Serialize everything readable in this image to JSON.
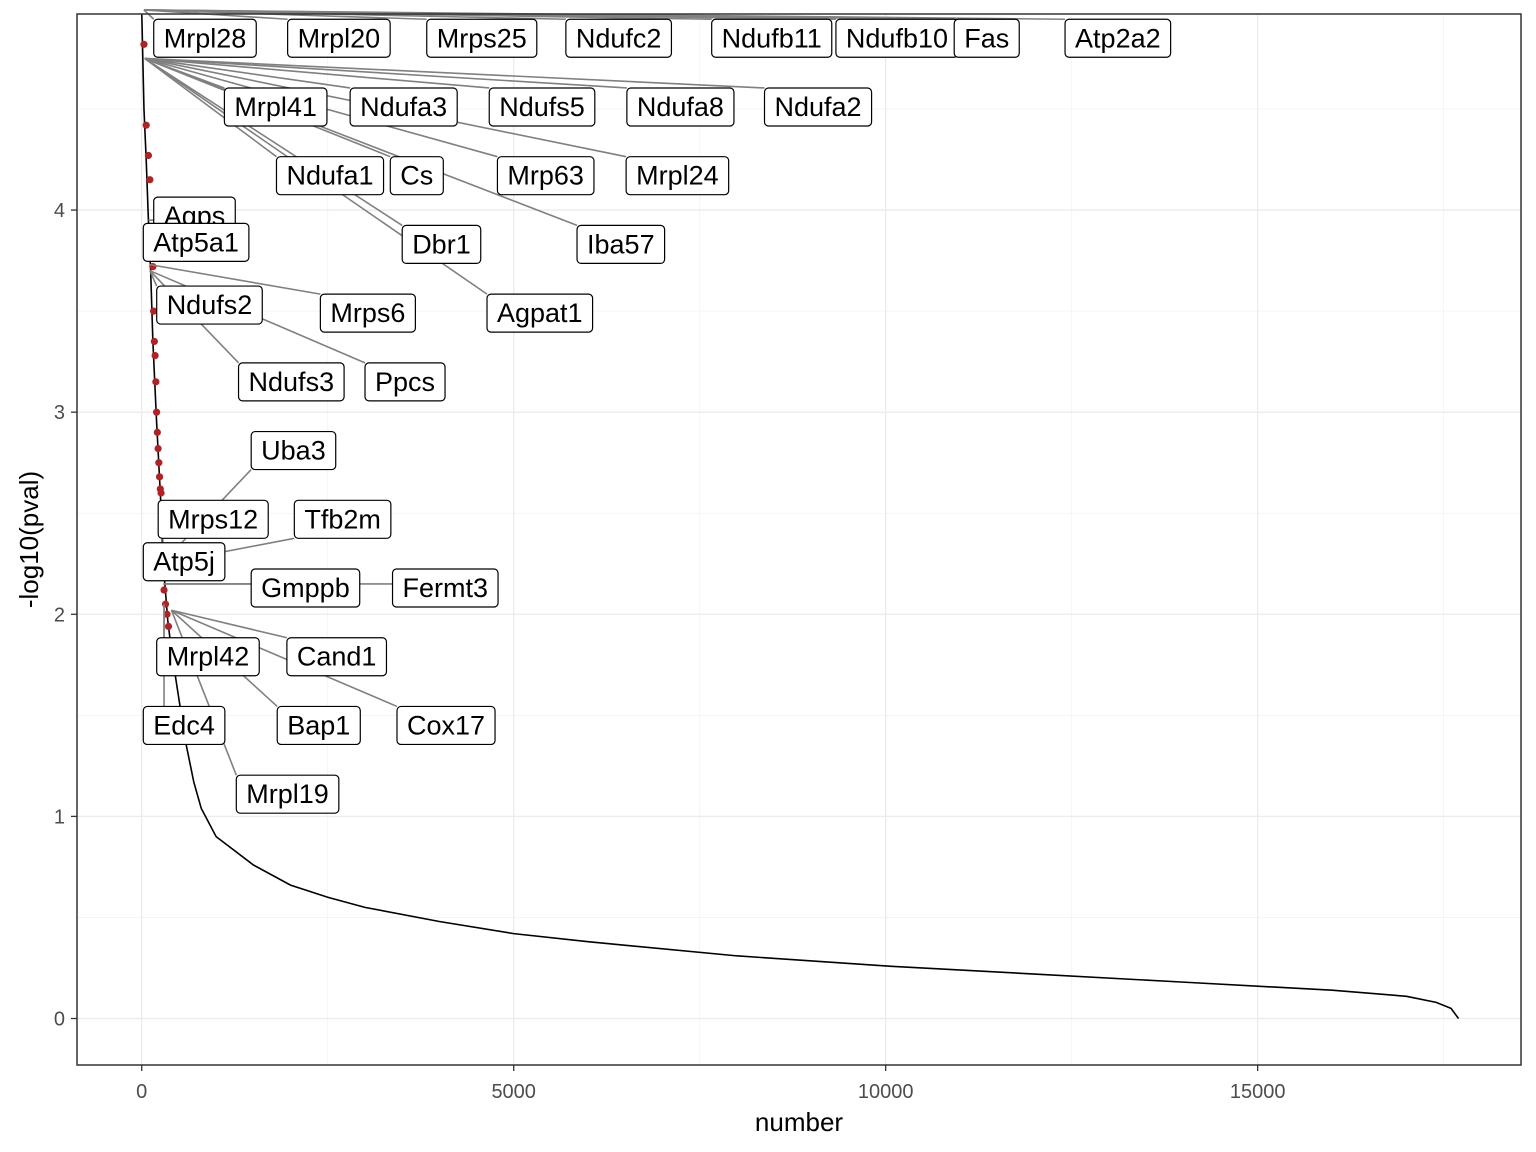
{
  "chart_data": {
    "type": "line",
    "xlabel": "number",
    "ylabel": "-log10(pval)",
    "xlim": [
      -870,
      18540
    ],
    "ylim": [
      -0.23,
      4.97
    ],
    "x_ticks": [
      0,
      5000,
      10000,
      15000
    ],
    "x_tick_labels": [
      "0",
      "5000",
      "10000",
      "15000"
    ],
    "y_ticks": [
      0,
      1,
      2,
      3,
      4
    ],
    "y_tick_labels": [
      "0",
      "1",
      "2",
      "3",
      "4"
    ],
    "grid": true,
    "colors": {
      "line": "#000000",
      "highlight_points": "#b22222",
      "connector": "#808080",
      "grid": "#ebebeb",
      "panel_border": "#333333"
    },
    "series": [
      {
        "values_description_x": "number",
        "x": [
          1,
          30,
          60,
          90,
          120,
          150,
          200,
          250,
          300,
          350,
          400,
          450,
          500,
          600,
          700,
          800,
          1000,
          1500,
          2000,
          2500,
          3000,
          4000,
          5000,
          6000,
          8000,
          10000,
          12000,
          14000,
          16000,
          17000,
          17400,
          17600,
          17700
        ],
        "y": [
          5.0,
          4.5,
          4.25,
          3.95,
          3.7,
          3.35,
          2.95,
          2.6,
          2.2,
          1.97,
          1.82,
          1.7,
          1.58,
          1.35,
          1.17,
          1.04,
          0.9,
          0.76,
          0.66,
          0.6,
          0.55,
          0.48,
          0.42,
          0.38,
          0.31,
          0.26,
          0.22,
          0.18,
          0.14,
          0.11,
          0.08,
          0.05,
          0.0
        ]
      }
    ],
    "highlight_points": {
      "x": [
        30,
        60,
        90,
        110,
        120,
        130,
        150,
        160,
        170,
        180,
        190,
        200,
        210,
        220,
        230,
        240,
        250,
        260,
        280,
        300,
        320,
        340,
        360
      ],
      "y": [
        4.82,
        4.42,
        4.27,
        4.15,
        3.9,
        3.82,
        3.72,
        3.5,
        3.35,
        3.28,
        3.15,
        3.0,
        2.9,
        2.82,
        2.75,
        2.68,
        2.62,
        2.6,
        2.25,
        2.12,
        2.05,
        2.0,
        1.94
      ]
    },
    "labels": [
      {
        "text": "Mrpl28",
        "x": 0,
        "y": 4.85,
        "tx": 30,
        "ty": 5.0
      },
      {
        "text": "Mrpl20",
        "x": 1800,
        "y": 4.85,
        "tx": 30,
        "ty": 5.0
      },
      {
        "text": "Mrps25",
        "x": 3670,
        "y": 4.85,
        "tx": 30,
        "ty": 5.0
      },
      {
        "text": "Ndufc2",
        "x": 5540,
        "y": 4.85,
        "tx": 30,
        "ty": 5.0
      },
      {
        "text": "Ndufb11",
        "x": 7500,
        "y": 4.85,
        "tx": 30,
        "ty": 5.0
      },
      {
        "text": "Ndufb10",
        "x": 9170,
        "y": 4.85,
        "tx": 30,
        "ty": 5.0
      },
      {
        "text": "Fas",
        "x": 10760,
        "y": 4.85,
        "tx": 30,
        "ty": 5.0
      },
      {
        "text": "Atp2a2",
        "x": 12250,
        "y": 4.85,
        "tx": 30,
        "ty": 5.0
      },
      {
        "text": "Mrpl41",
        "x": 950,
        "y": 4.51,
        "tx": 40,
        "ty": 4.75
      },
      {
        "text": "Ndufa3",
        "x": 2640,
        "y": 4.51,
        "tx": 40,
        "ty": 4.75
      },
      {
        "text": "Ndufs5",
        "x": 4510,
        "y": 4.51,
        "tx": 40,
        "ty": 4.75
      },
      {
        "text": "Ndufa8",
        "x": 6360,
        "y": 4.51,
        "tx": 40,
        "ty": 4.75
      },
      {
        "text": "Ndufa2",
        "x": 8210,
        "y": 4.51,
        "tx": 40,
        "ty": 4.75
      },
      {
        "text": "Ndufa1",
        "x": 1650,
        "y": 4.17,
        "tx": 40,
        "ty": 4.75
      },
      {
        "text": "Cs",
        "x": 3180,
        "y": 4.17,
        "tx": 40,
        "ty": 4.75
      },
      {
        "text": "Mrp63",
        "x": 4620,
        "y": 4.17,
        "tx": 40,
        "ty": 4.75
      },
      {
        "text": "Mrpl24",
        "x": 6350,
        "y": 4.17,
        "tx": 40,
        "ty": 4.75
      },
      {
        "text": "Dbr1",
        "x": 3340,
        "y": 3.83,
        "tx": 40,
        "ty": 4.75
      },
      {
        "text": "Iba57",
        "x": 5690,
        "y": 3.83,
        "tx": 40,
        "ty": 4.75
      },
      {
        "text": "Agpat1",
        "x": 4480,
        "y": 3.49,
        "tx": 40,
        "ty": 4.75
      },
      {
        "text": "Agps",
        "x": 0,
        "y": 3.97,
        "tx": 90,
        "ty": 3.95
      },
      {
        "text": "Atp5a1",
        "x": -140,
        "y": 3.84,
        "tx": 100,
        "ty": 3.8
      },
      {
        "text": "Ndufs2",
        "x": 40,
        "y": 3.53,
        "tx": 110,
        "ty": 3.7
      },
      {
        "text": "Mrps6",
        "x": 2240,
        "y": 3.49,
        "tx": 110,
        "ty": 3.73
      },
      {
        "text": "Ndufs3",
        "x": 1140,
        "y": 3.15,
        "tx": 110,
        "ty": 3.7
      },
      {
        "text": "Ppcs",
        "x": 2840,
        "y": 3.15,
        "tx": 110,
        "ty": 3.7
      },
      {
        "text": "Uba3",
        "x": 1310,
        "y": 2.81,
        "tx": 270,
        "ty": 2.25
      },
      {
        "text": "Mrps12",
        "x": 60,
        "y": 2.47,
        "tx": 270,
        "ty": 2.25
      },
      {
        "text": "Tfb2m",
        "x": 1890,
        "y": 2.47,
        "tx": 270,
        "ty": 2.25
      },
      {
        "text": "Atp5j",
        "x": -140,
        "y": 2.26,
        "tx": 280,
        "ty": 2.25
      },
      {
        "text": "Gmppb",
        "x": 1310,
        "y": 2.13,
        "tx": 290,
        "ty": 2.15
      },
      {
        "text": "Fermt3",
        "x": 3210,
        "y": 2.13,
        "tx": 290,
        "ty": 2.15
      },
      {
        "text": "Mrpl42",
        "x": 40,
        "y": 1.79,
        "tx": 300,
        "ty": 2.05
      },
      {
        "text": "Cand1",
        "x": 1790,
        "y": 1.79,
        "tx": 400,
        "ty": 2.02
      },
      {
        "text": "Edc4",
        "x": -140,
        "y": 1.45,
        "tx": 300,
        "ty": 2.05
      },
      {
        "text": "Bap1",
        "x": 1660,
        "y": 1.45,
        "tx": 400,
        "ty": 2.02
      },
      {
        "text": "Cox17",
        "x": 3270,
        "y": 1.45,
        "tx": 400,
        "ty": 2.02
      },
      {
        "text": "Mrpl19",
        "x": 1110,
        "y": 1.11,
        "tx": 400,
        "ty": 2.02
      }
    ]
  }
}
